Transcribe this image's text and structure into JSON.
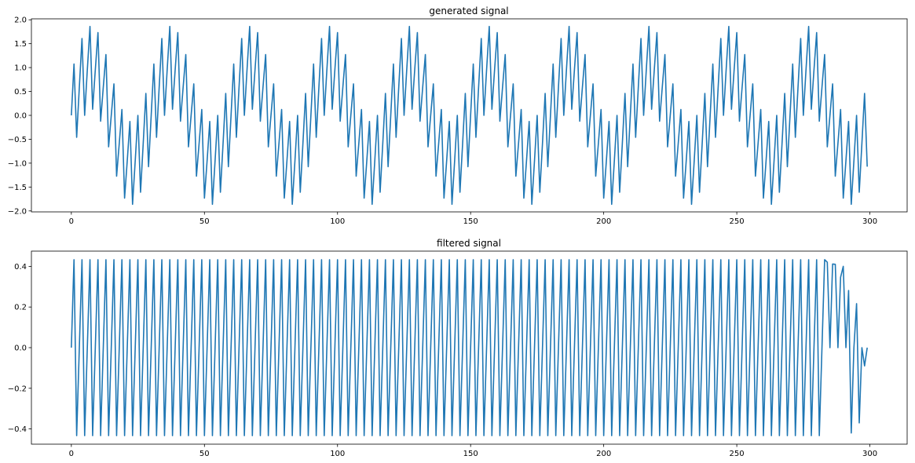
{
  "chart_data": [
    {
      "type": "line",
      "title": "generated signal",
      "xlabel": "",
      "ylabel": "",
      "xlim": [
        -15,
        314
      ],
      "ylim": [
        -2.02,
        2.02
      ],
      "xticks": [
        0,
        50,
        100,
        150,
        200,
        250,
        300
      ],
      "yticks": [
        -2.0,
        -1.5,
        -1.0,
        -0.5,
        0.0,
        0.5,
        1.0,
        1.5,
        2.0
      ],
      "xtick_labels": [
        "0",
        "50",
        "100",
        "150",
        "200",
        "250",
        "300"
      ],
      "ytick_labels": [
        "−2.0",
        "−1.5",
        "−1.0",
        "−0.5",
        "0.0",
        "0.5",
        "1.0",
        "1.5",
        "2.0"
      ],
      "grid": false,
      "series": [
        {
          "color": "#1f77b4",
          "n_samples": 300,
          "description": "sum of a slow sine (period 30 samples, amplitude 1) and a fast oscillation (period 3 samples, amplitude ~0.87)",
          "x_start": 0,
          "x_end": 299
        }
      ]
    },
    {
      "type": "line",
      "title": "filtered signal",
      "xlabel": "",
      "ylabel": "",
      "xlim": [
        -15,
        314
      ],
      "ylim": [
        -0.475,
        0.475
      ],
      "xticks": [
        0,
        50,
        100,
        150,
        200,
        250,
        300
      ],
      "yticks": [
        -0.4,
        -0.2,
        0.0,
        0.2,
        0.4
      ],
      "xtick_labels": [
        "0",
        "50",
        "100",
        "150",
        "200",
        "250",
        "300"
      ],
      "ytick_labels": [
        "−0.4",
        "−0.2",
        "0.0",
        "0.2",
        "0.4"
      ],
      "grid": false,
      "series": [
        {
          "color": "#1f77b4",
          "n_samples": 300,
          "description": "fast oscillation only (period 3 samples, amplitude ~0.433) with edge taper near the end",
          "x_start": 0,
          "x_end": 299,
          "tail_values": [
            {
              "x": 284,
              "y": 0.42
            },
            {
              "x": 287,
              "y": 0.41
            },
            {
              "x": 290,
              "y": 0.4
            },
            {
              "x": 293,
              "y": -0.42
            },
            {
              "x": 296,
              "y": -0.37
            },
            {
              "x": 298,
              "y": -0.09
            },
            {
              "x": 299,
              "y": 0.0
            }
          ]
        }
      ]
    }
  ]
}
